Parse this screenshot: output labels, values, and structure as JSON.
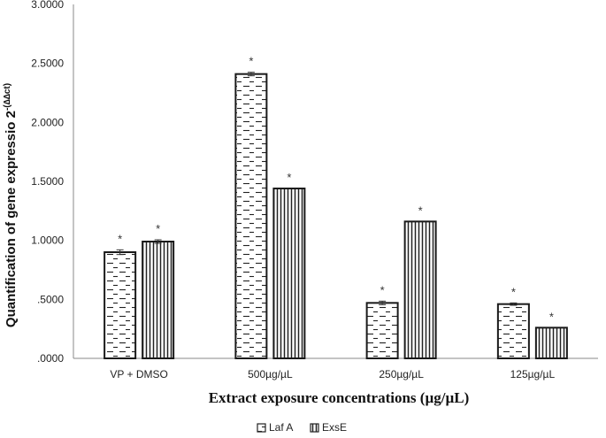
{
  "chart_data": {
    "type": "bar",
    "xlabel": "Extract exposure concentrations (µg/µL)",
    "ylabel_main": "Quantification of gene expressio 2",
    "ylabel_sup": "-(∆∆ct)",
    "ylim": [
      0,
      3
    ],
    "yticks": [
      "3.0000",
      "2.5000",
      "2.0000",
      "1.5000",
      "1.0000",
      ".5000",
      ".0000"
    ],
    "categories": [
      "VP + DMSO",
      "500µg/µL",
      "250µg/µL",
      "125µg/µL"
    ],
    "series": [
      {
        "name": "Laf A",
        "pattern": "dashes",
        "values": [
          0.9,
          2.41,
          0.47,
          0.46
        ],
        "errors": [
          0.02,
          0.015,
          0.015,
          0.01
        ],
        "stars": [
          "*",
          "*",
          "*",
          "*"
        ]
      },
      {
        "name": "ExsE",
        "pattern": "vlines",
        "values": [
          0.99,
          1.44,
          1.16,
          0.26
        ],
        "errors": [
          0.015,
          0,
          0,
          0
        ],
        "stars": [
          "*",
          "*",
          "*",
          "*"
        ]
      }
    ],
    "grid": false,
    "legend_position": "bottom",
    "colors": {
      "bar_stroke": "#1a1a1a",
      "axis": "#888888",
      "fill_bg": "#ffffff"
    }
  }
}
